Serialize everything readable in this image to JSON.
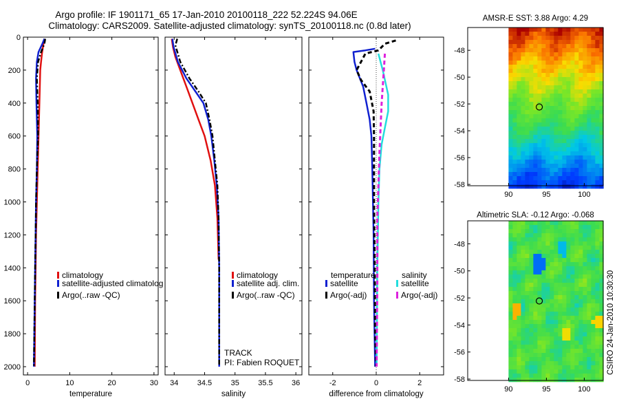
{
  "titles": {
    "line1": "Argo profile: IF 1901171_65 17-Jan-2010 20100118_222 52.224S 94.06E",
    "line2": "Climatology: CARS2009. Satellite-adjusted climatology: synTS_20100118.nc (0.8d later)"
  },
  "footer_vertical": "CSIRO 24-Jan-2010 10:30:30",
  "colors": {
    "climatology": "#e01010",
    "satellite": "#1020d0",
    "argo": "#000000",
    "sal_satellite": "#22dddd",
    "sal_argo": "#dd22dd"
  },
  "chart_data": [
    {
      "type": "line",
      "xlabel": "temperature",
      "xlim": [
        -1,
        31
      ],
      "ylim": [
        2050,
        0
      ],
      "xticks": [
        0,
        10,
        20,
        30
      ],
      "yticks": [
        0,
        200,
        400,
        600,
        800,
        1000,
        1200,
        1400,
        1600,
        1800,
        2000
      ],
      "legend": {
        "position": "lower-right",
        "entries": [
          "climatology",
          "satellite-adjusted climatolog",
          "Argo(..raw -QC)"
        ]
      },
      "series": [
        {
          "name": "climatology",
          "style": "solid",
          "x": [
            4.0,
            3.7,
            3.4,
            3.2,
            3.0,
            2.8,
            2.6,
            2.4,
            2.2,
            2.0,
            1.9,
            1.8,
            1.7
          ],
          "y": [
            10,
            50,
            100,
            150,
            200,
            400,
            600,
            800,
            1000,
            1200,
            1400,
            1600,
            2000
          ]
        },
        {
          "name": "satellite-adjusted climatolog",
          "style": "solid",
          "x": [
            4.0,
            3.5,
            2.6,
            2.2,
            2.0,
            2.1,
            2.3,
            2.2,
            2.0,
            1.9,
            1.8,
            1.7,
            1.5
          ],
          "y": [
            10,
            40,
            90,
            150,
            250,
            400,
            600,
            800,
            1000,
            1200,
            1400,
            1600,
            2000
          ]
        },
        {
          "name": "Argo(..raw -QC)",
          "style": "dashdot",
          "x": [
            4.2,
            4.0,
            3.2,
            2.5,
            2.2,
            2.4,
            2.5,
            2.2,
            2.0,
            1.9,
            1.8,
            1.7,
            1.5
          ],
          "y": [
            10,
            40,
            90,
            150,
            250,
            400,
            600,
            800,
            1000,
            1200,
            1400,
            1600,
            2000
          ]
        }
      ]
    },
    {
      "type": "line",
      "xlabel": "salinity",
      "xlim": [
        33.85,
        36.1
      ],
      "ylim": [
        2050,
        0
      ],
      "xticks": [
        34,
        34.5,
        35,
        35.5,
        36
      ],
      "yticks": [
        0,
        200,
        400,
        600,
        800,
        1000,
        1200,
        1400,
        1600,
        1800,
        2000
      ],
      "legend": {
        "position": "lower-right",
        "entries": [
          "climatology",
          "satellite adj. clim.",
          "Argo(..raw -QC)"
        ]
      },
      "annotations": [
        "TRACK",
        "PI: Fabien ROQUET"
      ],
      "series": [
        {
          "name": "climatology",
          "style": "solid",
          "x": [
            33.96,
            33.98,
            34.02,
            34.1,
            34.2,
            34.3,
            34.4,
            34.5,
            34.6,
            34.67,
            34.71,
            34.73
          ],
          "y": [
            10,
            60,
            120,
            200,
            300,
            400,
            500,
            600,
            750,
            900,
            1100,
            1350
          ]
        },
        {
          "name": "satellite adj. clim.",
          "style": "solid",
          "x": [
            33.97,
            33.99,
            34.06,
            34.2,
            34.35,
            34.48,
            34.56,
            34.61,
            34.66,
            34.7,
            34.73,
            34.74,
            34.74
          ],
          "y": [
            10,
            60,
            150,
            250,
            330,
            400,
            500,
            600,
            750,
            900,
            1100,
            1400,
            2000
          ]
        },
        {
          "name": "Argo(..raw -QC)",
          "style": "dashdot",
          "x": [
            34.05,
            34.02,
            34.1,
            34.25,
            34.4,
            34.52,
            34.58,
            34.63,
            34.67,
            34.71,
            34.73,
            34.74,
            34.74
          ],
          "y": [
            10,
            50,
            150,
            250,
            330,
            400,
            500,
            600,
            750,
            900,
            1100,
            1400,
            2000
          ]
        }
      ]
    },
    {
      "type": "line",
      "xlabel": "difference from climatology",
      "xlim": [
        -3.1,
        3.1
      ],
      "ylim": [
        2050,
        0
      ],
      "xticks": [
        -2,
        0,
        2
      ],
      "yticks": [
        0,
        200,
        400,
        600,
        800,
        1000,
        1200,
        1400,
        1600,
        1800,
        2000
      ],
      "legend": {
        "position": "lower-right",
        "groups": [
          "temperature",
          "salinity"
        ],
        "entries": [
          "satellite",
          "Argo(-adj)",
          "satellite",
          "Argo(-adj)"
        ]
      },
      "series": [
        {
          "name": "temperature satellite",
          "style": "solid",
          "x": [
            -0.05,
            -0.5,
            -1.05,
            -1.0,
            -0.9,
            -0.6,
            -0.45,
            -0.3,
            -0.22,
            -0.18,
            -0.15,
            -0.12,
            -0.1,
            -0.05
          ],
          "y": [
            70,
            80,
            90,
            150,
            200,
            300,
            400,
            500,
            600,
            800,
            1000,
            1200,
            1600,
            2000
          ]
        },
        {
          "name": "temperature Argo(-adj)",
          "style": "dashed",
          "x": [
            0.9,
            0.4,
            0.1,
            -0.5,
            -0.9,
            -0.7,
            -0.3,
            -0.12,
            -0.1,
            -0.1,
            -0.1,
            -0.07,
            -0.05,
            0.0
          ],
          "y": [
            20,
            40,
            80,
            100,
            200,
            260,
            330,
            450,
            600,
            800,
            1000,
            1400,
            1800,
            2000
          ]
        },
        {
          "name": "salinity satellite",
          "style": "solid",
          "x": [
            0.1,
            0.2,
            0.3,
            0.55,
            0.55,
            0.4,
            0.25,
            0.15,
            0.1,
            0.05,
            0.02
          ],
          "y": [
            100,
            150,
            200,
            350,
            450,
            550,
            650,
            800,
            1000,
            1400,
            2000
          ]
        },
        {
          "name": "salinity Argo(-adj)",
          "style": "dashed",
          "x": [
            0.4,
            0.35,
            0.25,
            0.15,
            0.1,
            0.05,
            0.05,
            0.02
          ],
          "y": [
            100,
            200,
            400,
            700,
            900,
            1100,
            1500,
            2000
          ]
        }
      ]
    },
    {
      "type": "heatmap",
      "title": "AMSR-E SST: 3.88 Argo: 4.29",
      "xlim": [
        84.6,
        102.5
      ],
      "ylim": [
        -58.1,
        -46.3
      ],
      "xticks": [
        90,
        95,
        100
      ],
      "yticks": [
        -48,
        -50,
        -52,
        -54,
        -56,
        -58
      ],
      "data_extent_lon": [
        90,
        102.5
      ],
      "marker": {
        "lon": 94.06,
        "lat": -52.224
      }
    },
    {
      "type": "heatmap",
      "title": "Altimetric SLA: -0.12 Argo: -0.068",
      "xlim": [
        84.6,
        102.5
      ],
      "ylim": [
        -58.1,
        -46.3
      ],
      "xticks": [
        90,
        95,
        100
      ],
      "yticks": [
        -48,
        -50,
        -52,
        -54,
        -56,
        -58
      ],
      "data_extent_lon": [
        90,
        102.5
      ],
      "marker": {
        "lon": 94.06,
        "lat": -52.224
      }
    }
  ]
}
